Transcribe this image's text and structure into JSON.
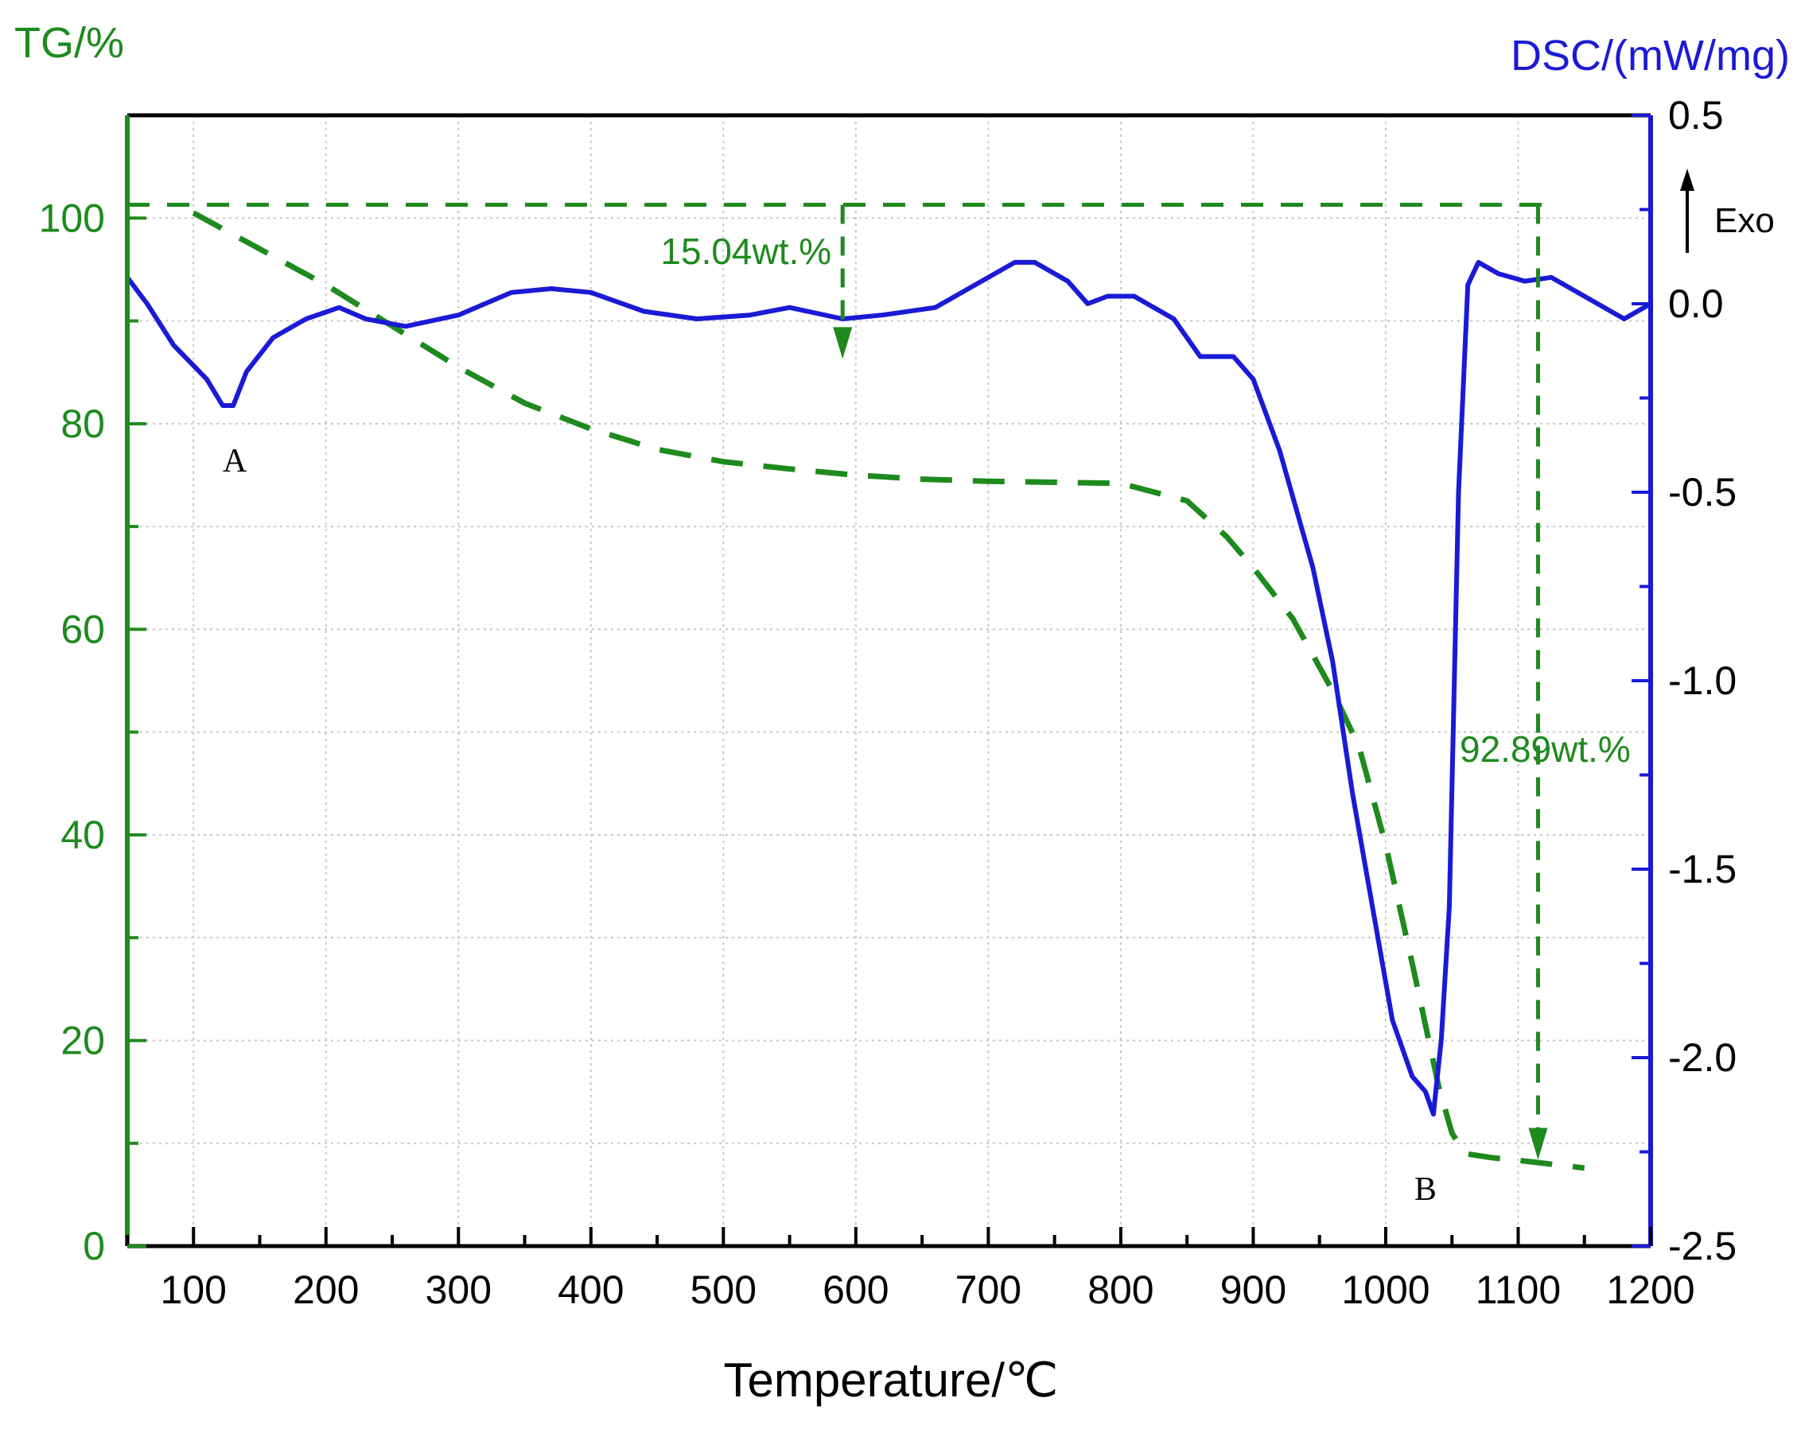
{
  "chart_data": {
    "type": "line",
    "title": "",
    "xlabel": "Temperature/℃",
    "ylabel_left": "TG/%",
    "ylabel_right": "DSC/(mW/mg)",
    "exo_label": "Exo",
    "xlim": [
      50,
      1200
    ],
    "ylim_left": [
      0,
      110
    ],
    "ylim_right": [
      -2.5,
      0.5
    ],
    "x_ticks": [
      "100",
      "200",
      "300",
      "400",
      "500",
      "600",
      "700",
      "800",
      "900",
      "1000",
      "1100",
      "1200"
    ],
    "y_left_ticks": [
      "0",
      "20",
      "40",
      "60",
      "80",
      "100"
    ],
    "y_right_ticks": [
      "-2.5",
      "-2.0",
      "-1.5",
      "-1.0",
      "-0.5",
      "0.0",
      "0.5"
    ],
    "grid": true,
    "colors": {
      "tg": "#1e8a1e",
      "dsc": "#1a1ad6",
      "axis": "#000000"
    },
    "series": [
      {
        "name": "DSC",
        "axis": "right",
        "style": "solid",
        "x": [
          50,
          65,
          85,
          110,
          122,
          130,
          140,
          160,
          185,
          210,
          230,
          260,
          300,
          340,
          370,
          400,
          440,
          480,
          520,
          550,
          590,
          620,
          660,
          690,
          720,
          735,
          760,
          775,
          790,
          810,
          840,
          860,
          885,
          900,
          920,
          945,
          960,
          975,
          990,
          1005,
          1020,
          1030,
          1036,
          1042,
          1048,
          1055,
          1062,
          1070,
          1085,
          1105,
          1125,
          1150,
          1180,
          1200
        ],
        "y": [
          0.07,
          0.0,
          -0.11,
          -0.2,
          -0.27,
          -0.27,
          -0.18,
          -0.09,
          -0.04,
          -0.01,
          -0.04,
          -0.06,
          -0.03,
          0.03,
          0.04,
          0.03,
          -0.02,
          -0.04,
          -0.03,
          -0.01,
          -0.04,
          -0.03,
          -0.01,
          0.05,
          0.11,
          0.11,
          0.06,
          0.0,
          0.02,
          0.02,
          -0.04,
          -0.14,
          -0.14,
          -0.2,
          -0.39,
          -0.7,
          -0.95,
          -1.3,
          -1.6,
          -1.9,
          -2.05,
          -2.09,
          -2.15,
          -1.95,
          -1.6,
          -0.5,
          0.05,
          0.11,
          0.08,
          0.06,
          0.07,
          0.02,
          -0.04,
          0.0
        ]
      },
      {
        "name": "TG",
        "axis": "left",
        "style": "dashed",
        "x": [
          100,
          150,
          200,
          250,
          300,
          350,
          400,
          450,
          500,
          550,
          600,
          650,
          700,
          750,
          800,
          850,
          880,
          900,
          930,
          960,
          980,
          1000,
          1020,
          1040,
          1050,
          1060,
          1080,
          1110,
          1150
        ],
        "y": [
          100.5,
          97.0,
          93.5,
          89.5,
          85.5,
          82.0,
          79.5,
          77.5,
          76.3,
          75.6,
          75.0,
          74.6,
          74.4,
          74.3,
          74.2,
          72.5,
          69.0,
          66.0,
          61.0,
          54.0,
          48.5,
          39.0,
          27.5,
          15.5,
          11.0,
          9.0,
          8.6,
          8.2,
          7.6
        ]
      }
    ],
    "annotations": {
      "baseline_100": {
        "x": [
          50,
          1120
        ],
        "y_left": 101.3
      },
      "step1": {
        "label": "15.04wt.%",
        "x": 590,
        "from": 101.3,
        "to": 86.3
      },
      "step2": {
        "label": "92.89wt.%",
        "x": 1115,
        "from": 101.3,
        "to": 8.4
      },
      "peaks": [
        {
          "label": "A",
          "x": 130,
          "y_right": -0.27
        },
        {
          "label": "B",
          "x": 1036,
          "y_right": -2.15
        }
      ]
    }
  }
}
